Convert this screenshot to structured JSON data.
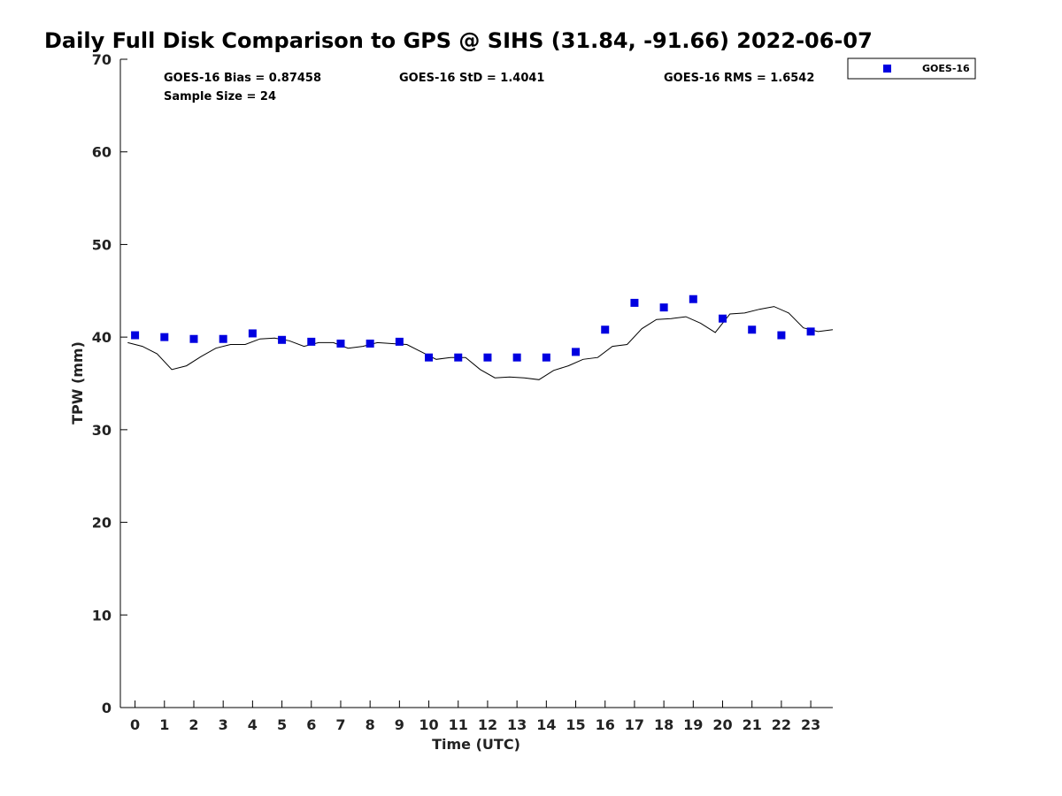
{
  "chart_data": {
    "type": "scatter",
    "title": "Daily Full Disk Comparison to GPS @ SIHS (31.84, -91.66) 2022-06-07",
    "xlabel": "Time (UTC)",
    "ylabel": "TPW (mm)",
    "xlim": [
      -0.5,
      23.75
    ],
    "ylim": [
      0,
      70
    ],
    "x_ticks": [
      0,
      1,
      2,
      3,
      4,
      5,
      6,
      7,
      8,
      9,
      10,
      11,
      12,
      13,
      14,
      15,
      16,
      17,
      18,
      19,
      20,
      21,
      22,
      23
    ],
    "y_ticks": [
      0,
      10,
      20,
      30,
      40,
      50,
      60,
      70
    ],
    "grid": false,
    "legend_position": "top-right, outside plot",
    "stats": {
      "bias": "GOES-16 Bias = 0.87458",
      "std": "GOES-16 StD = 1.4041",
      "rms": "GOES-16 RMS = 1.6542",
      "sample": "Sample Size = 24"
    },
    "series": [
      {
        "name": "GOES-16",
        "marker": "square",
        "color": "#0000e0",
        "x": [
          0,
          1,
          2,
          3,
          4,
          5,
          6,
          7,
          8,
          9,
          10,
          11,
          12,
          13,
          14,
          15,
          16,
          17,
          18,
          19,
          20,
          21,
          22,
          23
        ],
        "y": [
          40.2,
          40.0,
          39.8,
          39.8,
          40.4,
          39.7,
          39.5,
          39.3,
          39.3,
          39.5,
          37.8,
          37.8,
          37.8,
          37.8,
          37.8,
          38.4,
          40.8,
          43.7,
          43.2,
          44.1,
          42.0,
          40.8,
          40.2,
          40.6
        ]
      },
      {
        "marker": "line",
        "color": "#000000",
        "x": [
          -0.25,
          0.25,
          0.75,
          1.25,
          1.75,
          2.25,
          2.75,
          3.25,
          3.75,
          4.25,
          4.75,
          5.25,
          5.75,
          6.25,
          6.75,
          7.25,
          7.75,
          8.25,
          8.75,
          9.25,
          9.75,
          10.25,
          10.75,
          11.25,
          11.75,
          12.25,
          12.75,
          13.25,
          13.75,
          14.25,
          14.75,
          15.25,
          15.75,
          16.25,
          16.75,
          17.25,
          17.75,
          18.25,
          18.75,
          19.25,
          19.75,
          20.25,
          20.75,
          21.25,
          21.75,
          22.25,
          22.75,
          23.25,
          23.75
        ],
        "y": [
          39.4,
          39.0,
          38.2,
          36.5,
          36.9,
          37.9,
          38.8,
          39.2,
          39.2,
          39.8,
          39.9,
          39.6,
          39.0,
          39.4,
          39.4,
          38.8,
          39.0,
          39.4,
          39.3,
          39.2,
          38.4,
          37.6,
          37.8,
          37.8,
          36.5,
          35.6,
          35.7,
          35.6,
          35.4,
          36.4,
          36.9,
          37.6,
          37.8,
          39.0,
          39.2,
          40.9,
          41.9,
          42.0,
          42.2,
          41.5,
          40.5,
          42.5,
          42.6,
          43.0,
          43.3,
          42.6,
          41.0,
          40.6,
          40.8
        ]
      }
    ]
  }
}
